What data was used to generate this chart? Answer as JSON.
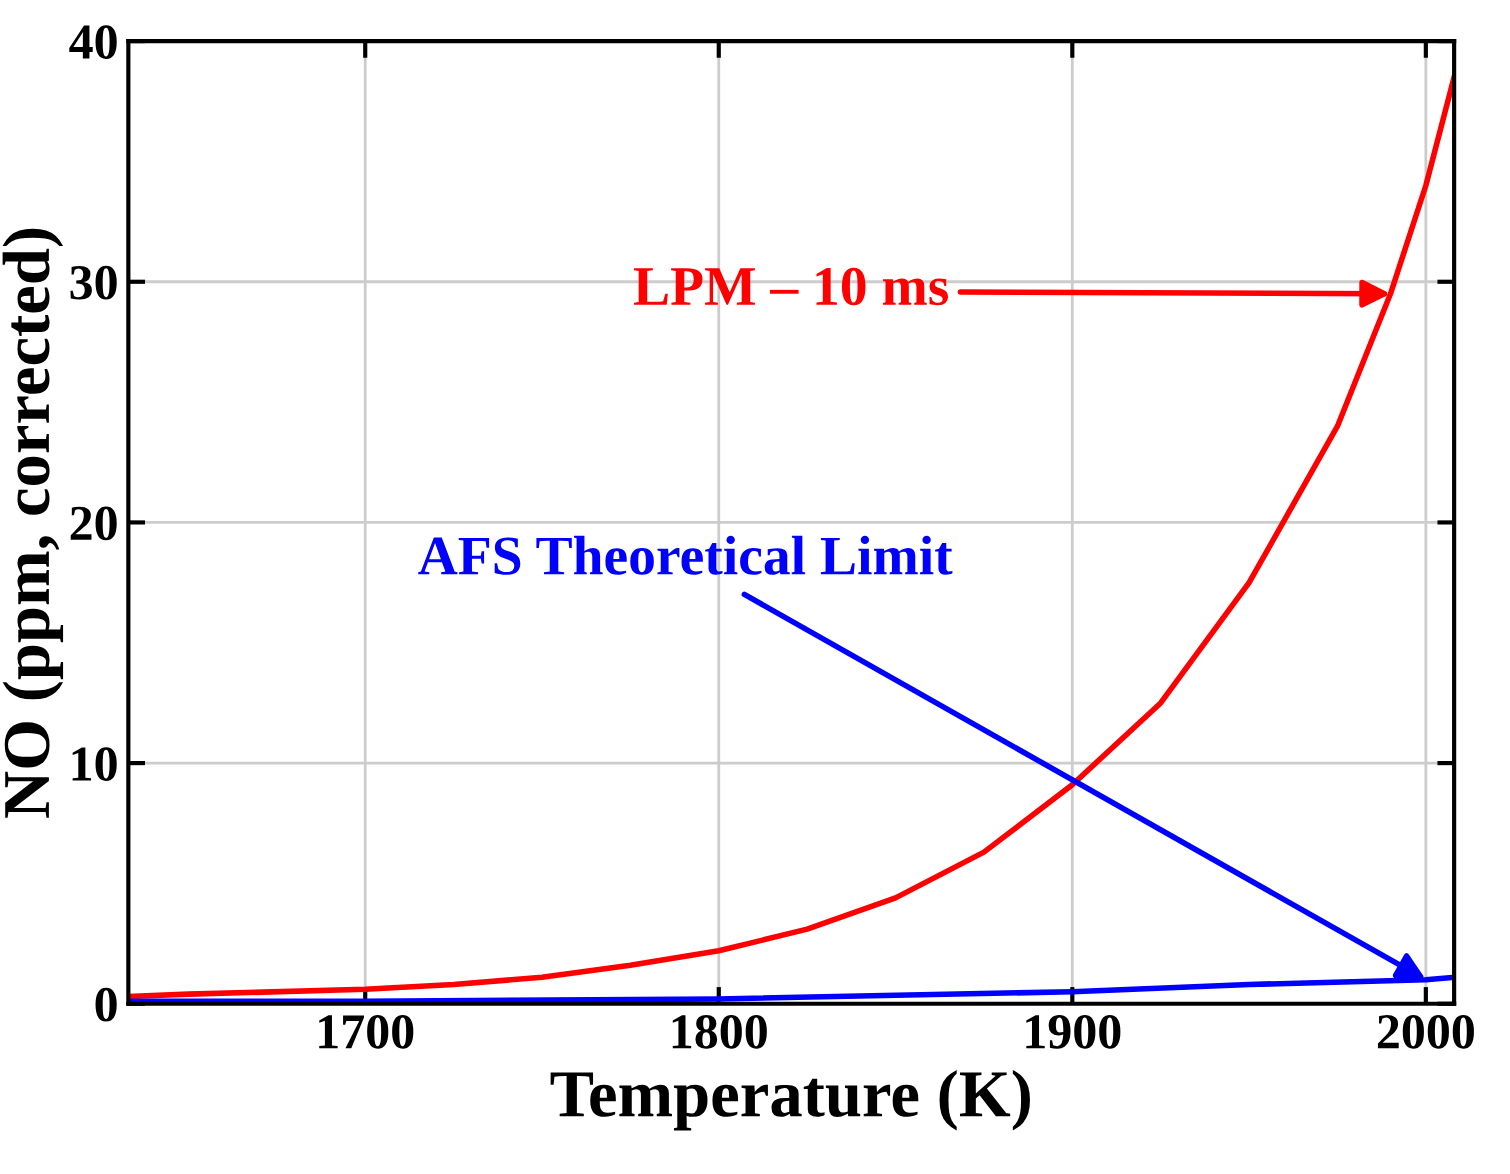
{
  "chart_data": {
    "type": "line",
    "xlabel": "Temperature (K)",
    "ylabel": "NO (ppm, corrected)",
    "xlim": [
      1633,
      2008
    ],
    "ylim": [
      0,
      40
    ],
    "xticks": [
      1700,
      1800,
      1900,
      2000
    ],
    "yticks": [
      0,
      10,
      20,
      30,
      40
    ],
    "grid": true,
    "series": [
      {
        "color": "#ff0000",
        "x": [
          1633,
          1650,
          1700,
          1725,
          1750,
          1775,
          1800,
          1825,
          1850,
          1875,
          1900,
          1925,
          1950,
          1975,
          1990,
          2000,
          2008
        ],
        "values": [
          0.3,
          0.4,
          0.6,
          0.8,
          1.1,
          1.6,
          2.2,
          3.1,
          4.4,
          6.3,
          9.1,
          12.5,
          17.5,
          24,
          29.5,
          34,
          38.5
        ]
      },
      {
        "color": "#0000ff",
        "x": [
          1633,
          1700,
          1800,
          1900,
          1950,
          2000,
          2008
        ],
        "values": [
          0.1,
          0.1,
          0.2,
          0.5,
          0.8,
          1.0,
          1.1
        ]
      }
    ],
    "annotations": [
      {
        "text": "LPM – 10 ms",
        "x": 1990,
        "y": 29.5
      },
      {
        "text": "AFS Theoretical Limit",
        "x": 2000,
        "y": 1.0
      }
    ]
  }
}
